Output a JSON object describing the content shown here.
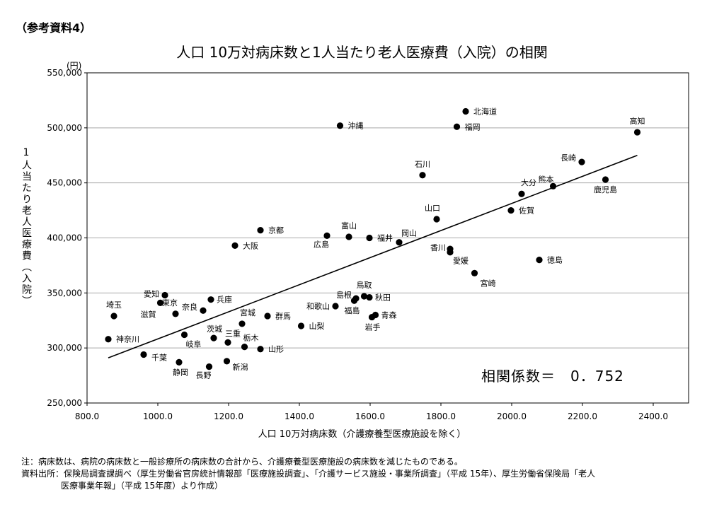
{
  "ref_label": "（参考資料4）",
  "chart_data": {
    "type": "scatter",
    "title": "人口 10万対病床数と1人当たり老人医療費（入院）の相関",
    "unit_label": "(円)",
    "ylabel": "1人当たり老人医療費（入院）",
    "xlabel": "人口 10万対病床数（介護療養型医療施設を除く）",
    "xlim": [
      800,
      2500
    ],
    "ylim": [
      250000,
      550000
    ],
    "x_ticks": [
      800,
      1000,
      1200,
      1400,
      1600,
      1800,
      2000,
      2200,
      2400
    ],
    "x_tick_labels": [
      "800.0",
      "1000.0",
      "1200.0",
      "1400.0",
      "1600.0",
      "1800.0",
      "2000.0",
      "2200.0",
      "2400.0"
    ],
    "y_ticks": [
      250000,
      300000,
      350000,
      400000,
      450000,
      500000,
      550000
    ],
    "y_tick_labels": [
      "250,000",
      "300,000",
      "350,000",
      "400,000",
      "450,000",
      "500,000",
      "550,000"
    ],
    "grid": "horizontal",
    "correlation_text": "相関係数＝　0．752",
    "trendline": {
      "x": [
        860,
        2355
      ],
      "y": [
        291000,
        475000
      ]
    },
    "points": [
      {
        "label": "北海道",
        "x": 1870,
        "y": 515000
      },
      {
        "label": "沖縄",
        "x": 1515,
        "y": 502000
      },
      {
        "label": "福岡",
        "x": 1845,
        "y": 501000
      },
      {
        "label": "高知",
        "x": 2355,
        "y": 496000
      },
      {
        "label": "長崎",
        "x": 2198,
        "y": 469000
      },
      {
        "label": "石川",
        "x": 1748,
        "y": 457000
      },
      {
        "label": "鹿児島",
        "x": 2265,
        "y": 453000
      },
      {
        "label": "熊本",
        "x": 2117,
        "y": 447000
      },
      {
        "label": "大分",
        "x": 2028,
        "y": 440000
      },
      {
        "label": "佐賀",
        "x": 1998,
        "y": 425000
      },
      {
        "label": "山口",
        "x": 1788,
        "y": 417000
      },
      {
        "label": "京都",
        "x": 1290,
        "y": 407000
      },
      {
        "label": "富山",
        "x": 1540,
        "y": 401000
      },
      {
        "label": "広島",
        "x": 1478,
        "y": 402000
      },
      {
        "label": "福井",
        "x": 1598,
        "y": 400000
      },
      {
        "label": "岡山",
        "x": 1682,
        "y": 396000
      },
      {
        "label": "大阪",
        "x": 1218,
        "y": 393000
      },
      {
        "label": "香川",
        "x": 1826,
        "y": 390000
      },
      {
        "label": "愛媛",
        "x": 1826,
        "y": 387000
      },
      {
        "label": "徳島",
        "x": 2078,
        "y": 380000
      },
      {
        "label": "宮崎",
        "x": 1895,
        "y": 368000
      },
      {
        "label": "愛知",
        "x": 1020,
        "y": 348000
      },
      {
        "label": "鳥取",
        "x": 1583,
        "y": 347000
      },
      {
        "label": "島根",
        "x": 1560,
        "y": 345000
      },
      {
        "label": "秋田",
        "x": 1598,
        "y": 346000
      },
      {
        "label": "兵庫",
        "x": 1150,
        "y": 344000
      },
      {
        "label": "福島",
        "x": 1555,
        "y": 343000
      },
      {
        "label": "滋賀",
        "x": 1007,
        "y": 341000
      },
      {
        "label": "和歌山",
        "x": 1502,
        "y": 338000
      },
      {
        "label": "奈良",
        "x": 1128,
        "y": 334000
      },
      {
        "label": "青森",
        "x": 1615,
        "y": 330000
      },
      {
        "label": "東京",
        "x": 1050,
        "y": 331000
      },
      {
        "label": "群馬",
        "x": 1310,
        "y": 329000
      },
      {
        "label": "埼玉",
        "x": 876,
        "y": 329000
      },
      {
        "label": "岩手",
        "x": 1605,
        "y": 328000
      },
      {
        "label": "宮城",
        "x": 1238,
        "y": 322000
      },
      {
        "label": "山梨",
        "x": 1405,
        "y": 320000
      },
      {
        "label": "岐阜",
        "x": 1075,
        "y": 312000
      },
      {
        "label": "茨城",
        "x": 1158,
        "y": 309000
      },
      {
        "label": "神奈川",
        "x": 860,
        "y": 308000
      },
      {
        "label": "三重",
        "x": 1198,
        "y": 305000
      },
      {
        "label": "栃木",
        "x": 1245,
        "y": 301000
      },
      {
        "label": "山形",
        "x": 1290,
        "y": 299000
      },
      {
        "label": "千葉",
        "x": 960,
        "y": 294000
      },
      {
        "label": "新潟",
        "x": 1195,
        "y": 288000
      },
      {
        "label": "静岡",
        "x": 1060,
        "y": 287000
      },
      {
        "label": "長野",
        "x": 1145,
        "y": 283000
      }
    ]
  },
  "notes": {
    "line1": "注：病床数は、病院の病床数と一般診療所の病床数の合計から、介護療養型医療施設の病床数を減じたものである。",
    "line2": "資料出所：保険局調査課調べ（厚生労働省官房統計情報部「医療施設調査」、「介護サービス施設・事業所調査」（平成 15年）、厚生労働省保険局「老人",
    "line3": "医療事業年報」（平成 15年度）より作成）"
  }
}
